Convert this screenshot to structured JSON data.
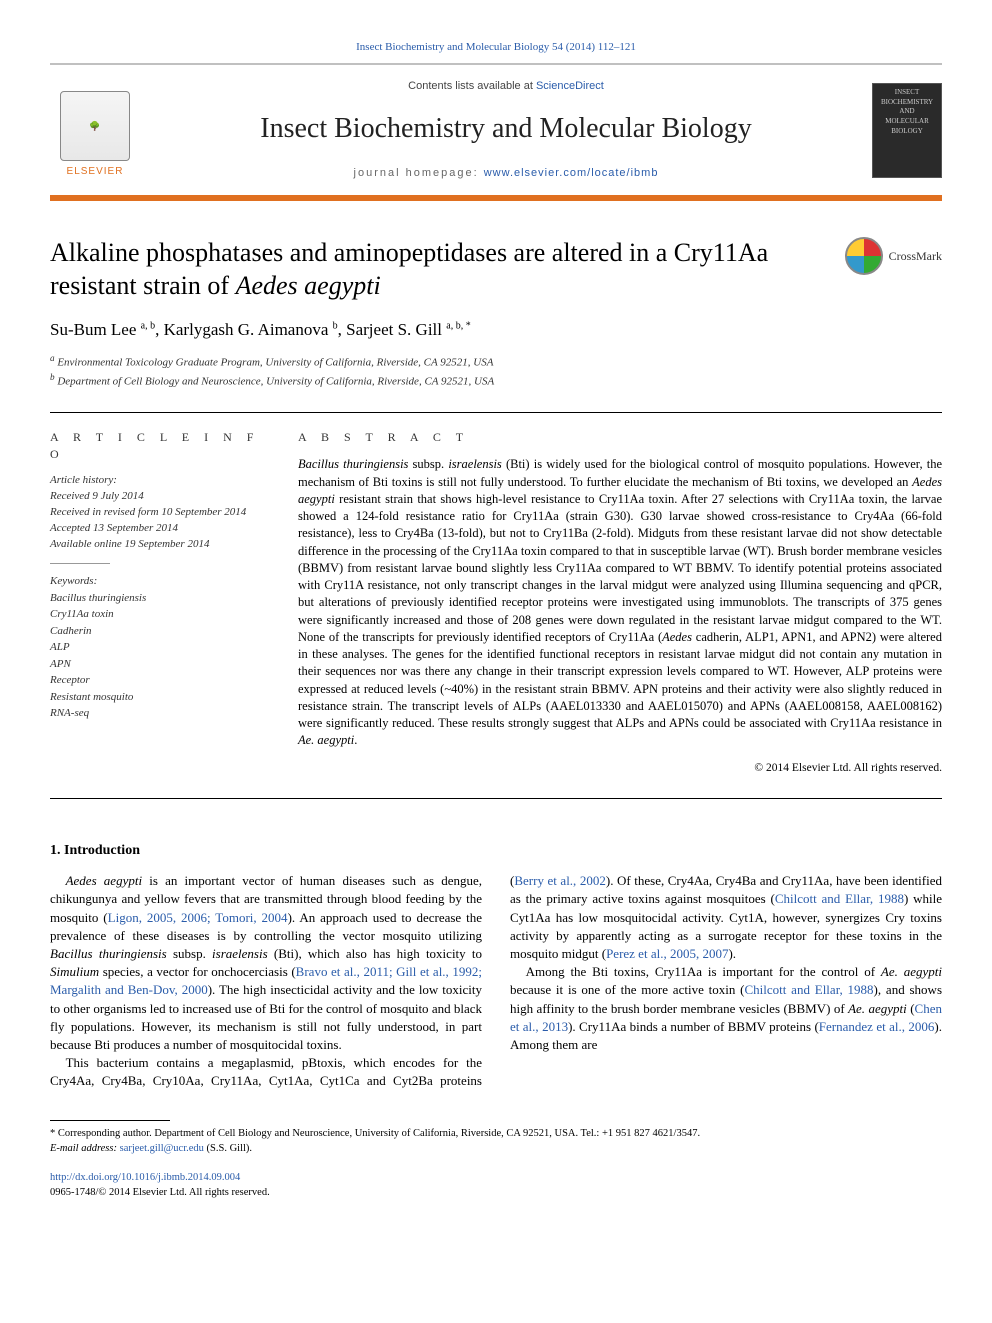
{
  "citation_line": "Insect Biochemistry and Molecular Biology 54 (2014) 112–121",
  "masthead": {
    "contents_prefix": "Contents lists available at ",
    "contents_link": "ScienceDirect",
    "journal_name": "Insect Biochemistry and Molecular Biology",
    "homepage_label": "journal homepage: ",
    "homepage_url": "www.elsevier.com/locate/ibmb",
    "publisher_name": "ELSEVIER",
    "cover_text": "INSECT BIOCHEMISTRY AND MOLECULAR BIOLOGY"
  },
  "article": {
    "title_pre": "Alkaline phosphatases and aminopeptidases are altered in a Cry11Aa resistant strain of ",
    "title_em": "Aedes aegypti",
    "crossmark": "CrossMark",
    "authors_html": "Su-Bum Lee ",
    "author1_sup": "a, b",
    "author2": ", Karlygash G. Aimanova ",
    "author2_sup": "b",
    "author3": ", Sarjeet S. Gill ",
    "author3_sup": "a, b, *",
    "affiliations": {
      "a": "Environmental Toxicology Graduate Program, University of California, Riverside, CA 92521, USA",
      "b": "Department of Cell Biology and Neuroscience, University of California, Riverside, CA 92521, USA"
    }
  },
  "article_info": {
    "heading": "A R T I C L E   I N F O",
    "history_label": "Article history:",
    "received": "Received 9 July 2014",
    "revised": "Received in revised form 10 September 2014",
    "accepted": "Accepted 13 September 2014",
    "online": "Available online 19 September 2014",
    "keywords_label": "Keywords:",
    "keywords": [
      "Bacillus thuringiensis",
      "Cry11Aa toxin",
      "Cadherin",
      "ALP",
      "APN",
      "Receptor",
      "Resistant mosquito",
      "RNA-seq"
    ]
  },
  "abstract": {
    "heading": "A B S T R A C T",
    "text_parts": [
      {
        "t": "em",
        "v": "Bacillus thuringiensis"
      },
      {
        "t": "tx",
        "v": " subsp. "
      },
      {
        "t": "em",
        "v": "israelensis"
      },
      {
        "t": "tx",
        "v": " (Bti) is widely used for the biological control of mosquito populations. However, the mechanism of Bti toxins is still not fully understood. To further elucidate the mechanism of Bti toxins, we developed an "
      },
      {
        "t": "em",
        "v": "Aedes aegypti"
      },
      {
        "t": "tx",
        "v": " resistant strain that shows high-level resistance to Cry11Aa toxin. After 27 selections with Cry11Aa toxin, the larvae showed a 124-fold resistance ratio for Cry11Aa (strain G30). G30 larvae showed cross-resistance to Cry4Aa (66-fold resistance), less to Cry4Ba (13-fold), but not to Cry11Ba (2-fold). Midguts from these resistant larvae did not show detectable difference in the processing of the Cry11Aa toxin compared to that in susceptible larvae (WT). Brush border membrane vesicles (BBMV) from resistant larvae bound slightly less Cry11Aa compared to WT BBMV. To identify potential proteins associated with Cry11A resistance, not only transcript changes in the larval midgut were analyzed using Illumina sequencing and qPCR, but alterations of previously identified receptor proteins were investigated using immunoblots. The transcripts of 375 genes were significantly increased and those of 208 genes were down regulated in the resistant larvae midgut compared to the WT. None of the transcripts for previously identified receptors of Cry11Aa ("
      },
      {
        "t": "em",
        "v": "Aedes"
      },
      {
        "t": "tx",
        "v": " cadherin, ALP1, APN1, and APN2) were altered in these analyses. The genes for the identified functional receptors in resistant larvae midgut did not contain any mutation in their sequences nor was there any change in their transcript expression levels compared to WT. However, ALP proteins were expressed at reduced levels (~40%) in the resistant strain BBMV. APN proteins and their activity were also slightly reduced in resistance strain. The transcript levels of ALPs (AAEL013330 and AAEL015070) and APNs (AAEL008158, AAEL008162) were significantly reduced. These results strongly suggest that ALPs and APNs could be associated with Cry11Aa resistance in "
      },
      {
        "t": "em",
        "v": "Ae. aegypti"
      },
      {
        "t": "tx",
        "v": "."
      }
    ],
    "copyright": "© 2014 Elsevier Ltd. All rights reserved."
  },
  "intro": {
    "heading": "1. Introduction",
    "p1": [
      {
        "t": "em",
        "v": "Aedes aegypti"
      },
      {
        "t": "tx",
        "v": " is an important vector of human diseases such as dengue, chikungunya and yellow fevers that are transmitted through blood feeding by the mosquito ("
      },
      {
        "t": "ref",
        "v": "Ligon, 2005, 2006; Tomori, 2004"
      },
      {
        "t": "tx",
        "v": "). An approach used to decrease the prevalence of these diseases is by controlling the vector mosquito utilizing "
      },
      {
        "t": "em",
        "v": "Bacillus thuringiensis"
      },
      {
        "t": "tx",
        "v": " subsp. "
      },
      {
        "t": "em",
        "v": "israelensis"
      },
      {
        "t": "tx",
        "v": " (Bti), which also has high toxicity to "
      },
      {
        "t": "em",
        "v": "Simulium"
      },
      {
        "t": "tx",
        "v": " species, a vector for onchocerciasis ("
      },
      {
        "t": "ref",
        "v": "Bravo et al., 2011; Gill et al., 1992; Margalith and Ben-Dov, 2000"
      },
      {
        "t": "tx",
        "v": "). The high insecticidal activity and the low toxicity to other organisms led to increased use of Bti for the control of mosquito and black fly populations. However, its mechanism is still not fully understood, in part because Bti produces a number of mosquitocidal toxins."
      }
    ],
    "p2": [
      {
        "t": "tx",
        "v": "This bacterium contains a megaplasmid, pBtoxis, which encodes for the Cry4Aa, Cry4Ba, Cry10Aa, Cry11Aa, Cyt1Aa, Cyt1Ca and Cyt2Ba proteins ("
      },
      {
        "t": "ref",
        "v": "Berry et al., 2002"
      },
      {
        "t": "tx",
        "v": "). Of these, Cry4Aa, Cry4Ba and Cry11Aa, have been identified as the primary active toxins against mosquitoes ("
      },
      {
        "t": "ref",
        "v": "Chilcott and Ellar, 1988"
      },
      {
        "t": "tx",
        "v": ") while Cyt1Aa has low mosquitocidal activity. Cyt1A, however, synergizes Cry toxins activity by apparently acting as a surrogate receptor for these toxins in the mosquito midgut ("
      },
      {
        "t": "ref",
        "v": "Perez et al., 2005, 2007"
      },
      {
        "t": "tx",
        "v": ")."
      }
    ],
    "p3": [
      {
        "t": "tx",
        "v": "Among the Bti toxins, Cry11Aa is important for the control of "
      },
      {
        "t": "em",
        "v": "Ae. aegypti"
      },
      {
        "t": "tx",
        "v": " because it is one of the more active toxin ("
      },
      {
        "t": "ref",
        "v": "Chilcott and Ellar, 1988"
      },
      {
        "t": "tx",
        "v": "), and shows high affinity to the brush border membrane vesicles (BBMV) of "
      },
      {
        "t": "em",
        "v": "Ae. aegypti"
      },
      {
        "t": "tx",
        "v": " ("
      },
      {
        "t": "ref",
        "v": "Chen et al., 2013"
      },
      {
        "t": "tx",
        "v": "). Cry11Aa binds a number of BBMV proteins ("
      },
      {
        "t": "ref",
        "v": "Fernandez et al., 2006"
      },
      {
        "t": "tx",
        "v": "). Among them are"
      }
    ]
  },
  "footnote": {
    "corr": "* Corresponding author. Department of Cell Biology and Neuroscience, University of California, Riverside, CA 92521, USA. Tel.: +1 951 827 4621/3547.",
    "email_label": "E-mail address: ",
    "email": "sarjeet.gill@ucr.edu",
    "email_suffix": " (S.S. Gill)."
  },
  "doi": {
    "url": "http://dx.doi.org/10.1016/j.ibmb.2014.09.004",
    "issn_line": "0965-1748/© 2014 Elsevier Ltd. All rights reserved."
  },
  "colors": {
    "link": "#2a5caa",
    "orange_rule": "#e07020",
    "text": "#000000",
    "muted": "#333333"
  }
}
